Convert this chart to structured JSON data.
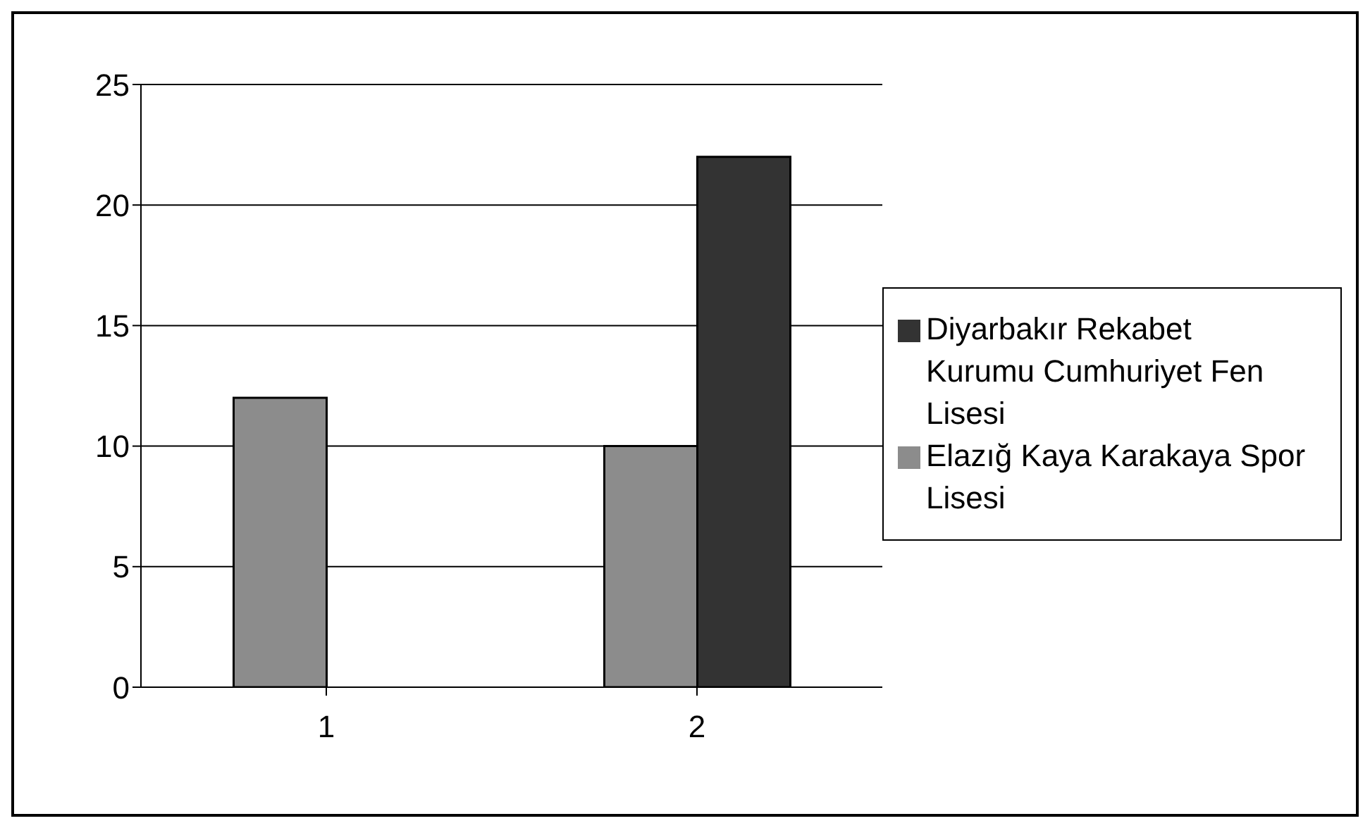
{
  "chart_data": {
    "type": "bar",
    "categories": [
      "1",
      "2"
    ],
    "series": [
      {
        "name": "Elazığ Kaya Karakaya Spor Lisesi",
        "color": "#8c8c8c",
        "values": [
          12,
          10
        ]
      },
      {
        "name": "Diyarbakır Rekabet Kurumu Cumhuriyet Fen Lisesi",
        "color": "#333333",
        "values": [
          null,
          22
        ]
      }
    ],
    "ylim": [
      0,
      25
    ],
    "yticks": [
      0,
      5,
      10,
      15,
      20,
      25
    ],
    "grid": "y",
    "legend": "right"
  }
}
